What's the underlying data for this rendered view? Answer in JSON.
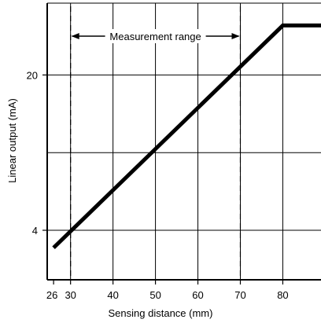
{
  "chart_data": {
    "type": "line",
    "xlabel": "Sensing distance (mm)",
    "ylabel": "Linear output (mA)",
    "xlim": [
      24.5,
      89
    ],
    "x_ticks": [
      26,
      30,
      40,
      50,
      60,
      70,
      80
    ],
    "x_gridlines": [
      30,
      40,
      50,
      60,
      70,
      80
    ],
    "ylim": [
      -1.1,
      27.4
    ],
    "y_ticks": [
      4,
      20
    ],
    "y_gridlines": [
      4,
      12,
      20
    ],
    "grid": true,
    "series": [
      {
        "x": [
          26,
          80,
          89
        ],
        "y": [
          2.2,
          25.1,
          25.1
        ]
      }
    ],
    "annotation": {
      "text": "Measurement range",
      "from": 30,
      "to": 70
    },
    "range_lines": [
      30,
      70
    ]
  }
}
